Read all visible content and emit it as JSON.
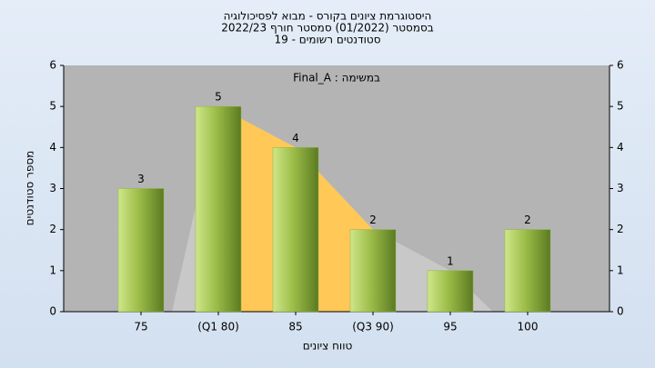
{
  "chart_data": {
    "type": "bar",
    "title": [
      "היסטוגרמת ציונים בקורס - מבוא לפסיכולוגיה",
      "בסמסטר (01/2022) סמסטר חורף 2022/23",
      "סטודנטים רשומים - 19"
    ],
    "annotation": "במשימה : Final_A",
    "x_label": "טווח ציונים",
    "y_label": "מספר סטודנטים",
    "categories": [
      "75",
      "(Q1 80)",
      "85",
      "(Q3 90)",
      "95",
      "100"
    ],
    "values": [
      3,
      5,
      4,
      2,
      1,
      2
    ],
    "color": "#8fb340",
    "ylim": [
      0,
      6
    ],
    "yticks": [
      0,
      1,
      2,
      3,
      4,
      5,
      6
    ],
    "y2lim": [
      0,
      6
    ],
    "y2ticks": [
      0,
      1,
      2,
      3,
      4,
      5,
      6
    ]
  }
}
